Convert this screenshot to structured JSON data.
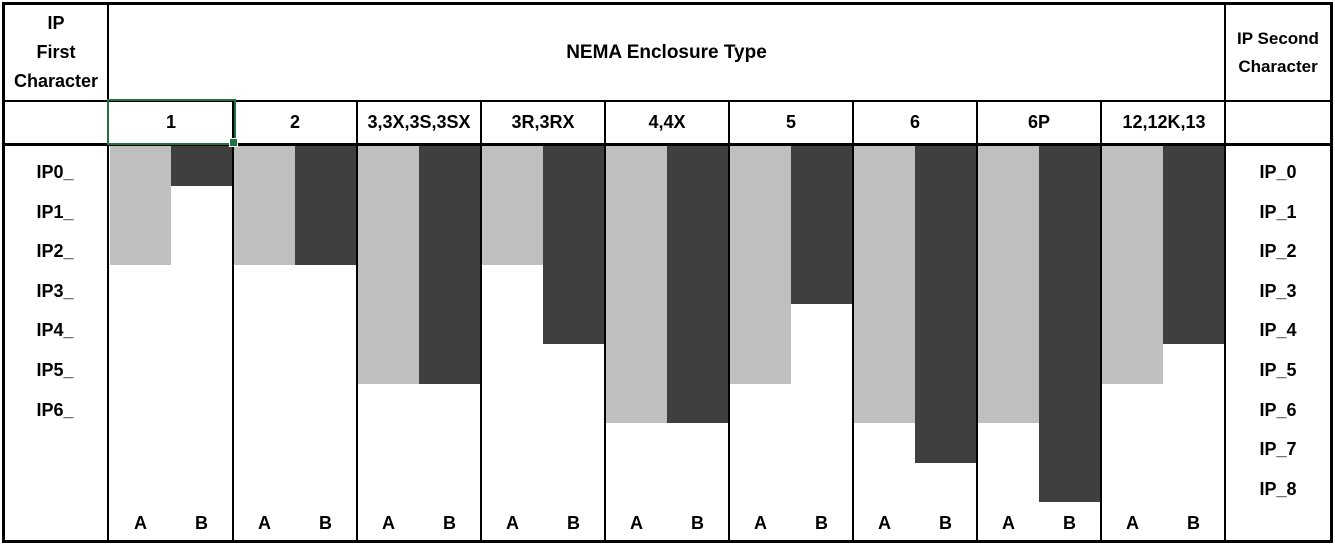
{
  "header": {
    "left_lines": [
      "IP",
      "First",
      "Character"
    ],
    "right_lines": [
      "IP Second",
      "Character"
    ]
  },
  "selection": {
    "selected_nema_type": "1",
    "border_color": "#217346"
  },
  "chart_data": {
    "type": "bar",
    "title": "NEMA Enclosure Type",
    "left_axis_title": "IP First Character",
    "right_axis_title": "IP Second Character",
    "left_ticks": [
      "IP0_",
      "IP1_",
      "IP2_",
      "IP3_",
      "IP4_",
      "IP5_",
      "IP6_"
    ],
    "right_ticks": [
      "IP_0",
      "IP_1",
      "IP_2",
      "IP_3",
      "IP_4",
      "IP_5",
      "IP_6",
      "IP_7",
      "IP_8"
    ],
    "bar_pair_labels": [
      "A",
      "B"
    ],
    "series": [
      {
        "name": "A",
        "meaning_axis": "IP First Character"
      },
      {
        "name": "B",
        "meaning_axis": "IP Second Character"
      }
    ],
    "columns": [
      {
        "label": "1",
        "a": 2,
        "b": 0
      },
      {
        "label": "2",
        "a": 2,
        "b": 2
      },
      {
        "label": "3,3X,3S,3SX",
        "a": 5,
        "b": 5
      },
      {
        "label": "3R,3RX",
        "a": 2,
        "b": 4
      },
      {
        "label": "4,4X",
        "a": 6,
        "b": 6
      },
      {
        "label": "5",
        "a": 5,
        "b": 3
      },
      {
        "label": "6",
        "a": 6,
        "b": 7
      },
      {
        "label": "6P",
        "a": 6,
        "b": 8
      },
      {
        "label": "12,12K,13",
        "a": 5,
        "b": 4
      }
    ],
    "colors": {
      "bar_a": "#bfbfbf",
      "bar_b": "#3f3f3f"
    },
    "ylim_rows": [
      0,
      8
    ],
    "grid": false,
    "legend_position": "none"
  }
}
